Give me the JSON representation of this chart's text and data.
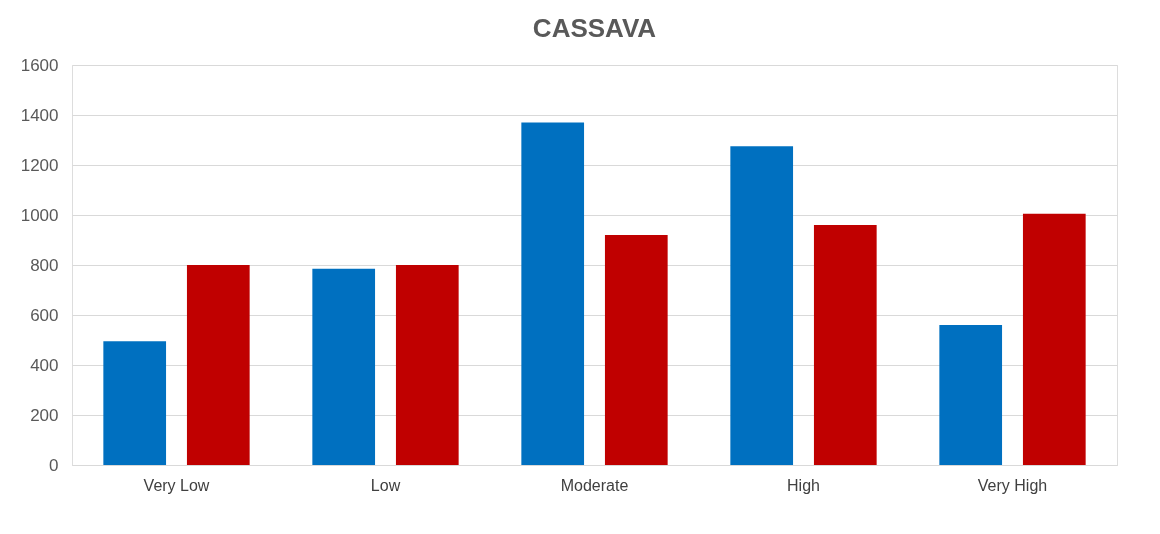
{
  "chart_data": {
    "type": "bar",
    "title": "CASSAVA",
    "categories": [
      "Very Low",
      "Low",
      "Moderate",
      "High",
      "Very High"
    ],
    "series": [
      {
        "color": "#0070c0",
        "values": [
          495,
          785,
          1370,
          1275,
          560
        ]
      },
      {
        "color": "#c00000",
        "values": [
          800,
          800,
          920,
          960,
          1005
        ]
      }
    ],
    "ylim": [
      0,
      1600
    ],
    "yticks": [
      0,
      200,
      400,
      600,
      800,
      1000,
      1200,
      1400,
      1600
    ],
    "grid": "y",
    "legend": false
  }
}
